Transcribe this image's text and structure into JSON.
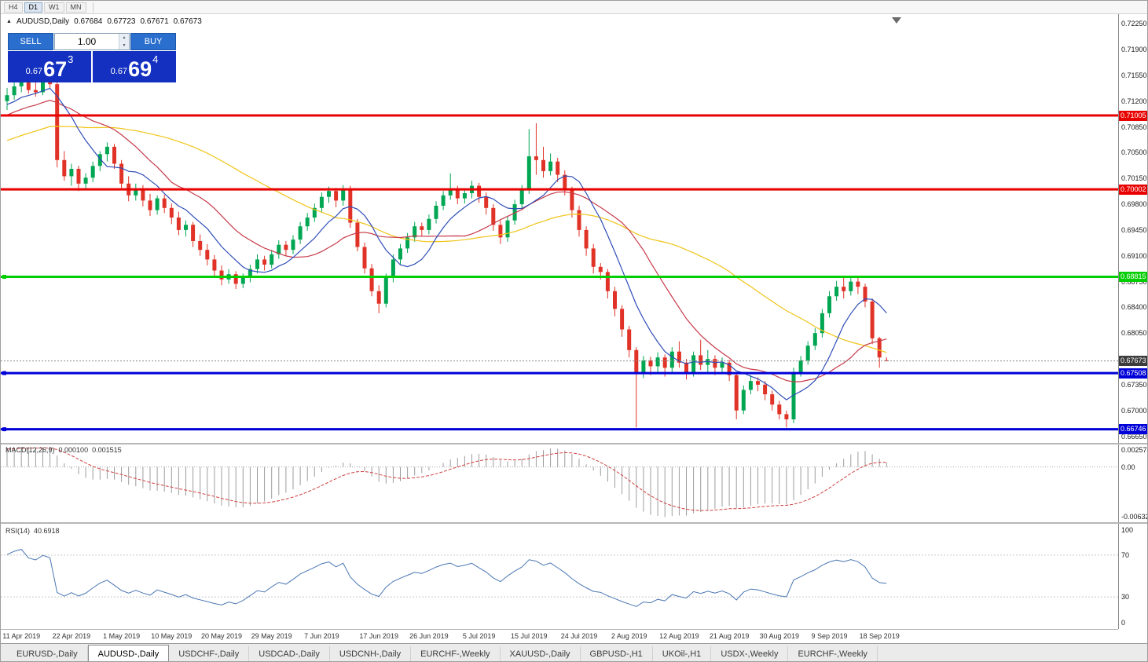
{
  "toolbar": {
    "timeframes": [
      "H4",
      "D1",
      "W1",
      "MN"
    ],
    "active": "D1"
  },
  "icons": {
    "symbol_arrow": "▲",
    "spinner_up": "▲",
    "spinner_down": "▼"
  },
  "header": {
    "symbol": "AUDUSD,Daily",
    "open": "0.67684",
    "high": "0.67723",
    "low": "0.67671",
    "close": "0.67673"
  },
  "one_click": {
    "sell_label": "SELL",
    "buy_label": "BUY",
    "volume": "1.00",
    "sell_price": {
      "prefix": "0.67",
      "big": "67",
      "sup": "3"
    },
    "buy_price": {
      "prefix": "0.67",
      "big": "69",
      "sup": "4"
    }
  },
  "macd_label": {
    "name": "MACD(12,26,9)",
    "value1": "0.000100",
    "value2": "0.001515"
  },
  "rsi_label": {
    "name": "RSI(14)",
    "value": "40.6918"
  },
  "tabs": {
    "items": [
      "EURUSD-,Daily",
      "AUDUSD-,Daily",
      "USDCHF-,Daily",
      "USDCAD-,Daily",
      "USDCNH-,Daily",
      "EURCHF-,Weekly",
      "XAUUSD-,Daily",
      "GBPUSD-,H1",
      "UKOil-,H1",
      "USDX-,Weekly",
      "EURCHF-,Weekly"
    ],
    "active_index": 1
  },
  "chart_data": {
    "type": "candlestick",
    "symbol": "AUDUSD",
    "timeframe": "Daily",
    "price_range": {
      "top": 0.7237,
      "bottom": 0.6656
    },
    "y_ticks": [
      "0.72250",
      "0.71900",
      "0.71550",
      "0.71200",
      "0.70850",
      "0.70500",
      "0.70150",
      "0.69800",
      "0.69450",
      "0.69100",
      "0.68750",
      "0.68400",
      "0.68050",
      "0.67700",
      "0.67350",
      "0.67000",
      "0.66650"
    ],
    "x_labels": [
      {
        "label": "11 Apr 2019",
        "bar": 2
      },
      {
        "label": "22 Apr 2019",
        "bar": 9
      },
      {
        "label": "1 May 2019",
        "bar": 16
      },
      {
        "label": "10 May 2019",
        "bar": 23
      },
      {
        "label": "20 May 2019",
        "bar": 30
      },
      {
        "label": "29 May 2019",
        "bar": 37
      },
      {
        "label": "7 Jun 2019",
        "bar": 44
      },
      {
        "label": "17 Jun 2019",
        "bar": 52
      },
      {
        "label": "26 Jun 2019",
        "bar": 59
      },
      {
        "label": "5 Jul 2019",
        "bar": 66
      },
      {
        "label": "15 Jul 2019",
        "bar": 73
      },
      {
        "label": "24 Jul 2019",
        "bar": 80
      },
      {
        "label": "2 Aug 2019",
        "bar": 87
      },
      {
        "label": "12 Aug 2019",
        "bar": 94
      },
      {
        "label": "21 Aug 2019",
        "bar": 101
      },
      {
        "label": "30 Aug 2019",
        "bar": 108
      },
      {
        "label": "9 Sep 2019",
        "bar": 115
      },
      {
        "label": "18 Sep 2019",
        "bar": 122
      }
    ],
    "colors": {
      "bull": "#00a651",
      "bear": "#e03226",
      "background": "#ffffff"
    },
    "levels": [
      {
        "value": 0.71005,
        "label": "0.71005",
        "color": "#e80000",
        "width": 3,
        "handles": false
      },
      {
        "value": 0.70002,
        "label": "0.70002",
        "color": "#e80000",
        "width": 3,
        "handles": false
      },
      {
        "value": 0.68815,
        "label": "0.68815",
        "color": "#00ce00",
        "width": 3,
        "handles": true
      },
      {
        "value": 0.67508,
        "label": "0.67508",
        "color": "#0000d8",
        "width": 3,
        "handles": true
      },
      {
        "value": 0.66746,
        "label": "0.66746",
        "color": "#0000d8",
        "width": 3,
        "handles": true
      }
    ],
    "current_price": {
      "value": 0.67673,
      "label": "0.67673",
      "color": "#3c3c3c"
    },
    "indicators": {
      "moving_averages": [
        {
          "period": 40,
          "color": "#f0c419"
        },
        {
          "period": 17,
          "color": "#c73a4a"
        },
        {
          "period": 8,
          "color": "#2f4db8"
        }
      ],
      "macd": {
        "params": "12,26,9",
        "axis_max": 0.002574,
        "axis_min": -0.006326,
        "axis_labels": [
          "0.002574",
          "0.00",
          "-0.006326"
        ],
        "histogram_color": "#9c9c9c",
        "signal_color": "#d23f3f"
      },
      "rsi": {
        "period": 14,
        "value": 40.6918,
        "levels": [
          70,
          30
        ],
        "axis_labels": [
          "100",
          "70",
          "30",
          "0"
        ],
        "line_color": "#4b77b3"
      }
    },
    "candles": [
      [
        0.712,
        0.7138,
        0.7108,
        0.7128
      ],
      [
        0.7128,
        0.7148,
        0.7122,
        0.714
      ],
      [
        0.714,
        0.7155,
        0.7132,
        0.7148
      ],
      [
        0.7148,
        0.7153,
        0.713,
        0.7135
      ],
      [
        0.7135,
        0.7147,
        0.7126,
        0.7132
      ],
      [
        0.7132,
        0.7152,
        0.7128,
        0.7147
      ],
      [
        0.7147,
        0.7155,
        0.7138,
        0.7143
      ],
      [
        0.7143,
        0.7146,
        0.703,
        0.704
      ],
      [
        0.704,
        0.7052,
        0.7012,
        0.7018
      ],
      [
        0.7018,
        0.7035,
        0.7005,
        0.7028
      ],
      [
        0.7028,
        0.7032,
        0.6998,
        0.7008
      ],
      [
        0.7008,
        0.7022,
        0.7,
        0.7016
      ],
      [
        0.7016,
        0.7038,
        0.701,
        0.7032
      ],
      [
        0.7032,
        0.7052,
        0.7025,
        0.7048
      ],
      [
        0.7048,
        0.7064,
        0.7038,
        0.7058
      ],
      [
        0.7058,
        0.7062,
        0.7028,
        0.7035
      ],
      [
        0.7035,
        0.704,
        0.7002,
        0.7008
      ],
      [
        0.7008,
        0.7018,
        0.6984,
        0.6992
      ],
      [
        0.6992,
        0.7008,
        0.6985,
        0.7001
      ],
      [
        0.7001,
        0.7006,
        0.6977,
        0.6985
      ],
      [
        0.6985,
        0.6994,
        0.6964,
        0.6972
      ],
      [
        0.6972,
        0.6992,
        0.6966,
        0.6988
      ],
      [
        0.6988,
        0.6993,
        0.6968,
        0.6975
      ],
      [
        0.6975,
        0.6981,
        0.6953,
        0.6962
      ],
      [
        0.6962,
        0.697,
        0.6938,
        0.6945
      ],
      [
        0.6945,
        0.6958,
        0.6936,
        0.6952
      ],
      [
        0.6952,
        0.6956,
        0.6922,
        0.693
      ],
      [
        0.693,
        0.6939,
        0.691,
        0.6918
      ],
      [
        0.6918,
        0.6926,
        0.6897,
        0.6905
      ],
      [
        0.6905,
        0.6911,
        0.6882,
        0.689
      ],
      [
        0.689,
        0.6897,
        0.687,
        0.6878
      ],
      [
        0.6878,
        0.6892,
        0.6872,
        0.6885
      ],
      [
        0.6885,
        0.6889,
        0.6865,
        0.6872
      ],
      [
        0.6872,
        0.6886,
        0.6866,
        0.688
      ],
      [
        0.688,
        0.6898,
        0.6874,
        0.6892
      ],
      [
        0.6892,
        0.6912,
        0.6886,
        0.6905
      ],
      [
        0.6905,
        0.691,
        0.689,
        0.6898
      ],
      [
        0.6898,
        0.6918,
        0.6893,
        0.6912
      ],
      [
        0.6912,
        0.6931,
        0.6906,
        0.6925
      ],
      [
        0.6925,
        0.693,
        0.691,
        0.6918
      ],
      [
        0.6918,
        0.6938,
        0.6912,
        0.6932
      ],
      [
        0.6932,
        0.6956,
        0.6926,
        0.695
      ],
      [
        0.695,
        0.6968,
        0.6944,
        0.6962
      ],
      [
        0.6962,
        0.6981,
        0.6956,
        0.6975
      ],
      [
        0.6975,
        0.6996,
        0.6969,
        0.699
      ],
      [
        0.699,
        0.7004,
        0.6982,
        0.6998
      ],
      [
        0.6998,
        0.7002,
        0.6976,
        0.6985
      ],
      [
        0.6985,
        0.7006,
        0.6978,
        0.7
      ],
      [
        0.7,
        0.7005,
        0.6948,
        0.6955
      ],
      [
        0.6955,
        0.696,
        0.6916,
        0.6922
      ],
      [
        0.6922,
        0.6928,
        0.6886,
        0.6893
      ],
      [
        0.6893,
        0.6899,
        0.6855,
        0.6862
      ],
      [
        0.6862,
        0.687,
        0.6832,
        0.6845
      ],
      [
        0.6845,
        0.6886,
        0.684,
        0.688
      ],
      [
        0.688,
        0.6912,
        0.6874,
        0.6905
      ],
      [
        0.6905,
        0.6926,
        0.6898,
        0.692
      ],
      [
        0.692,
        0.6941,
        0.6914,
        0.6935
      ],
      [
        0.6935,
        0.6956,
        0.6929,
        0.695
      ],
      [
        0.695,
        0.6955,
        0.6936,
        0.6945
      ],
      [
        0.6945,
        0.6966,
        0.6939,
        0.696
      ],
      [
        0.696,
        0.6984,
        0.6954,
        0.6978
      ],
      [
        0.6978,
        0.6998,
        0.6972,
        0.6992
      ],
      [
        0.6992,
        0.7022,
        0.6986,
        0.7
      ],
      [
        0.7,
        0.7005,
        0.698,
        0.6988
      ],
      [
        0.6988,
        0.7002,
        0.6981,
        0.6995
      ],
      [
        0.6995,
        0.7012,
        0.6988,
        0.7005
      ],
      [
        0.7005,
        0.7009,
        0.6982,
        0.699
      ],
      [
        0.699,
        0.6996,
        0.6966,
        0.6975
      ],
      [
        0.6975,
        0.698,
        0.6944,
        0.6952
      ],
      [
        0.6952,
        0.6958,
        0.6926,
        0.6935
      ],
      [
        0.6935,
        0.6964,
        0.6929,
        0.6958
      ],
      [
        0.6958,
        0.6986,
        0.6952,
        0.698
      ],
      [
        0.698,
        0.7006,
        0.6974,
        0.7
      ],
      [
        0.7,
        0.7082,
        0.6994,
        0.7045
      ],
      [
        0.7045,
        0.709,
        0.702,
        0.704
      ],
      [
        0.704,
        0.7058,
        0.7016,
        0.7025
      ],
      [
        0.7025,
        0.7049,
        0.7019,
        0.7038
      ],
      [
        0.7038,
        0.7043,
        0.701,
        0.702
      ],
      [
        0.702,
        0.7026,
        0.6992,
        0.7
      ],
      [
        0.7,
        0.7004,
        0.6962,
        0.6972
      ],
      [
        0.6972,
        0.6978,
        0.6936,
        0.6945
      ],
      [
        0.6945,
        0.695,
        0.691,
        0.692
      ],
      [
        0.692,
        0.6926,
        0.6886,
        0.6895
      ],
      [
        0.6895,
        0.69,
        0.6878,
        0.6888
      ],
      [
        0.6888,
        0.6892,
        0.6852,
        0.6862
      ],
      [
        0.6862,
        0.6868,
        0.6828,
        0.6838
      ],
      [
        0.6838,
        0.6843,
        0.68,
        0.681
      ],
      [
        0.681,
        0.6815,
        0.6772,
        0.6782
      ],
      [
        0.6782,
        0.6786,
        0.6677,
        0.6752
      ],
      [
        0.6752,
        0.6774,
        0.6744,
        0.6768
      ],
      [
        0.6768,
        0.6773,
        0.6748,
        0.676
      ],
      [
        0.676,
        0.6779,
        0.6752,
        0.6772
      ],
      [
        0.6772,
        0.6776,
        0.6746,
        0.6758
      ],
      [
        0.6758,
        0.6786,
        0.6752,
        0.678
      ],
      [
        0.678,
        0.6794,
        0.6758,
        0.6765
      ],
      [
        0.6765,
        0.677,
        0.6742,
        0.6752
      ],
      [
        0.6752,
        0.678,
        0.6746,
        0.6775
      ],
      [
        0.6775,
        0.6796,
        0.6755,
        0.6762
      ],
      [
        0.6762,
        0.6782,
        0.6752,
        0.677
      ],
      [
        0.677,
        0.6775,
        0.6748,
        0.6758
      ],
      [
        0.6758,
        0.6772,
        0.675,
        0.6765
      ],
      [
        0.6765,
        0.6769,
        0.674,
        0.6748
      ],
      [
        0.6748,
        0.6752,
        0.6688,
        0.67
      ],
      [
        0.67,
        0.6734,
        0.6695,
        0.6728
      ],
      [
        0.6728,
        0.6748,
        0.6722,
        0.674
      ],
      [
        0.674,
        0.6745,
        0.6726,
        0.6735
      ],
      [
        0.6735,
        0.674,
        0.6714,
        0.6722
      ],
      [
        0.6722,
        0.6727,
        0.67,
        0.6708
      ],
      [
        0.6708,
        0.6713,
        0.6688,
        0.6695
      ],
      [
        0.6695,
        0.67,
        0.6677,
        0.6688
      ],
      [
        0.6688,
        0.6758,
        0.6683,
        0.6752
      ],
      [
        0.6752,
        0.6774,
        0.6746,
        0.6768
      ],
      [
        0.6768,
        0.6794,
        0.6762,
        0.6788
      ],
      [
        0.6788,
        0.6812,
        0.6782,
        0.6805
      ],
      [
        0.6805,
        0.6838,
        0.6799,
        0.6832
      ],
      [
        0.6832,
        0.6862,
        0.6826,
        0.6855
      ],
      [
        0.6855,
        0.6876,
        0.6849,
        0.6868
      ],
      [
        0.6868,
        0.6882,
        0.6852,
        0.6862
      ],
      [
        0.6862,
        0.6883,
        0.6856,
        0.6875
      ],
      [
        0.6875,
        0.688,
        0.6858,
        0.6868
      ],
      [
        0.6868,
        0.6872,
        0.684,
        0.6848
      ],
      [
        0.6848,
        0.6852,
        0.679,
        0.6798
      ],
      [
        0.6798,
        0.68,
        0.6758,
        0.6772
      ],
      [
        0.67684,
        0.67723,
        0.67671,
        0.67673
      ]
    ]
  }
}
